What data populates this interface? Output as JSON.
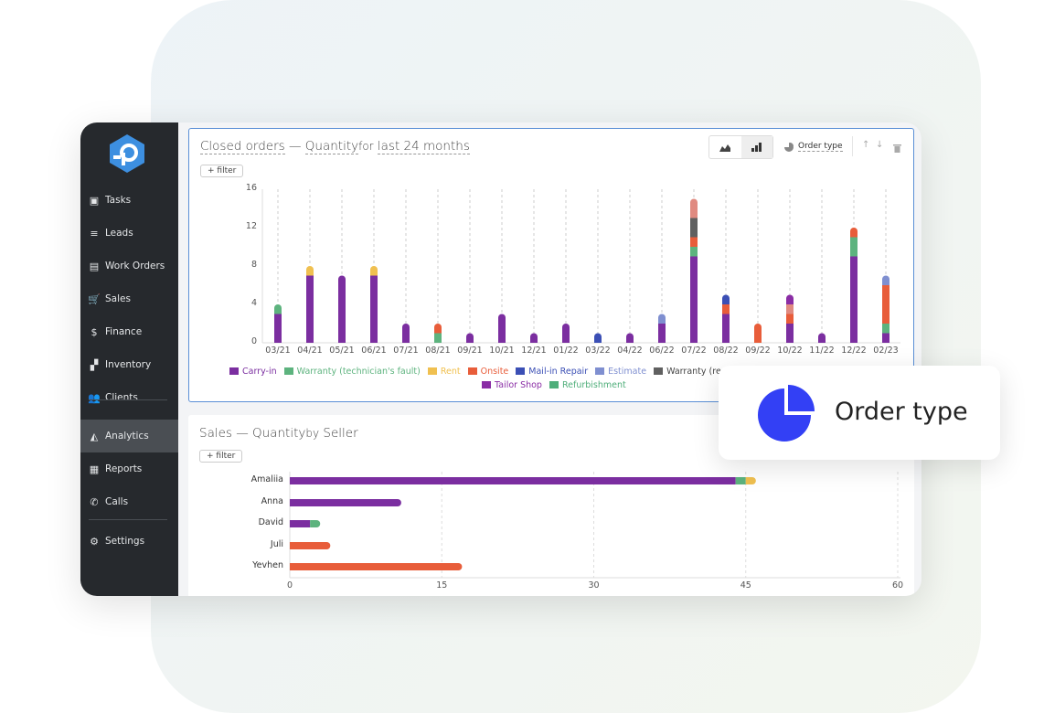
{
  "sidebar": {
    "items": [
      {
        "label": "Tasks",
        "icon": "clipboard-icon"
      },
      {
        "label": "Leads",
        "icon": "filter-icon"
      },
      {
        "label": "Work Orders",
        "icon": "inbox-icon"
      },
      {
        "label": "Sales",
        "icon": "cart-icon"
      },
      {
        "label": "Finance",
        "icon": "dollar-icon"
      },
      {
        "label": "Inventory",
        "icon": "boxes-icon"
      },
      {
        "label": "Clients",
        "icon": "users-icon"
      },
      {
        "label": "Analytics",
        "icon": "chart-area-icon",
        "active": true
      },
      {
        "label": "Reports",
        "icon": "table-icon"
      },
      {
        "label": "Calls",
        "icon": "phone-icon"
      },
      {
        "label": "Settings",
        "icon": "gear-icon"
      }
    ]
  },
  "panel1": {
    "title_a": "Closed orders",
    "dash": "—",
    "title_b": "Quantity",
    "for": "for",
    "title_c": "last 24 months",
    "filter": "+ filter",
    "group_by": "Order type"
  },
  "panel2": {
    "title_a": "Sales",
    "dash": "—",
    "title_b": "Quantity",
    "by": "by",
    "title_c": "Seller",
    "filter": "+ filter"
  },
  "popup": {
    "label": "Order type",
    "color": "#3340f5"
  },
  "chart_data": [
    {
      "type": "bar",
      "stacked": true,
      "orientation": "vertical",
      "ylim": [
        0,
        16
      ],
      "yticks": [
        0,
        4,
        8,
        12,
        16
      ],
      "grid": "vertical-dashed",
      "legend": "bottom",
      "categories": [
        "03/21",
        "04/21",
        "05/21",
        "06/21",
        "07/21",
        "08/21",
        "09/21",
        "10/21",
        "12/21",
        "01/22",
        "03/22",
        "04/22",
        "06/22",
        "07/22",
        "08/22",
        "09/22",
        "10/22",
        "11/22",
        "12/22",
        "02/23"
      ],
      "series": [
        {
          "name": "Carry-in",
          "color": "#7b2ea0",
          "values": [
            3,
            7,
            7,
            7,
            2,
            0,
            1,
            3,
            1,
            2,
            0,
            1,
            2,
            9,
            3,
            0,
            2,
            1,
            9,
            1
          ]
        },
        {
          "name": "Warranty (technician's fault)",
          "color": "#5db37e",
          "values": [
            1,
            0,
            0,
            0,
            0,
            1,
            0,
            0,
            0,
            0,
            0,
            0,
            0,
            1,
            0,
            0,
            0,
            0,
            2,
            1
          ]
        },
        {
          "name": "Rent",
          "color": "#f0c050",
          "values": [
            0,
            1,
            0,
            1,
            0,
            0,
            0,
            0,
            0,
            0,
            0,
            0,
            0,
            0,
            0,
            0,
            0,
            0,
            0,
            0
          ]
        },
        {
          "name": "Onsite",
          "color": "#e85d3a",
          "values": [
            0,
            0,
            0,
            0,
            0,
            1,
            0,
            0,
            0,
            0,
            0,
            0,
            0,
            1,
            1,
            2,
            1,
            0,
            1,
            4
          ]
        },
        {
          "name": "Mail-in Repair",
          "color": "#3b4fb5",
          "values": [
            0,
            0,
            0,
            0,
            0,
            0,
            0,
            0,
            0,
            0,
            1,
            0,
            0,
            0,
            1,
            0,
            0,
            0,
            0,
            0
          ]
        },
        {
          "name": "Estimate",
          "color": "#7f8fd0",
          "values": [
            0,
            0,
            0,
            0,
            0,
            0,
            0,
            0,
            0,
            0,
            0,
            0,
            1,
            0,
            0,
            0,
            0,
            0,
            0,
            1
          ]
        },
        {
          "name": "Warranty (reduced perce",
          "color": "#606060",
          "values": [
            0,
            0,
            0,
            0,
            0,
            0,
            0,
            0,
            0,
            0,
            0,
            0,
            0,
            2,
            0,
            0,
            0,
            0,
            0,
            0
          ]
        },
        {
          "color": "#e08a80",
          "values": [
            0,
            0,
            0,
            0,
            0,
            0,
            0,
            0,
            0,
            0,
            0,
            0,
            0,
            2,
            0,
            0,
            1,
            0,
            0,
            0
          ]
        },
        {
          "name": "Tailor Shop",
          "color": "#8a2da5",
          "values": [
            0,
            0,
            0,
            0,
            0,
            0,
            0,
            0,
            0,
            0,
            0,
            0,
            0,
            0,
            0,
            0,
            1,
            0,
            0,
            0
          ]
        },
        {
          "name": "Refurbishment",
          "color": "#4fae7a",
          "values": [
            0,
            0,
            0,
            0,
            0,
            0,
            0,
            0,
            0,
            0,
            0,
            0,
            0,
            0,
            0,
            0,
            0,
            0,
            0,
            0
          ]
        }
      ]
    },
    {
      "type": "bar",
      "stacked": true,
      "orientation": "horizontal",
      "xlim": [
        0,
        60
      ],
      "xticks": [
        0,
        15,
        30,
        45,
        60
      ],
      "grid": "vertical-dashed",
      "categories": [
        "Amaliia",
        "Anna",
        "David",
        "Juli",
        "Yevhen"
      ],
      "series": [
        {
          "color": "#7b2ea0",
          "values": [
            44,
            11,
            2,
            0,
            0
          ]
        },
        {
          "color": "#5db37e",
          "values": [
            1,
            0,
            1,
            0,
            0
          ]
        },
        {
          "color": "#f0c050",
          "values": [
            1,
            0,
            0,
            0,
            0
          ]
        },
        {
          "color": "#e85d3a",
          "values": [
            0,
            0,
            0,
            4,
            17
          ]
        }
      ]
    }
  ]
}
